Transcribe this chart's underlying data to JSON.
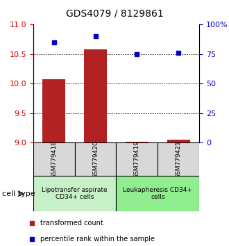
{
  "title": "GDS4079 / 8129861",
  "samples": [
    "GSM779418",
    "GSM779420",
    "GSM779419",
    "GSM779421"
  ],
  "transformed_counts": [
    10.07,
    10.58,
    9.02,
    9.05
  ],
  "percentile_ranks": [
    85,
    90,
    75,
    76
  ],
  "ylim_left": [
    9,
    11
  ],
  "ylim_right": [
    0,
    100
  ],
  "yticks_left": [
    9,
    9.5,
    10,
    10.5,
    11
  ],
  "yticks_right": [
    0,
    25,
    50,
    75,
    100
  ],
  "ytick_labels_right": [
    "0",
    "25",
    "50",
    "75",
    "100%"
  ],
  "bar_color": "#b22222",
  "dot_color": "#0000cc",
  "bar_bottom": 9.0,
  "groups": [
    {
      "label": "Lipotransfer aspirate\nCD34+ cells",
      "indices": [
        0,
        1
      ],
      "color": "#c8f0c8"
    },
    {
      "label": "Leukapheresis CD34+\ncells",
      "indices": [
        2,
        3
      ],
      "color": "#90ee90"
    }
  ],
  "cell_type_label": "cell type",
  "legend_items": [
    {
      "color": "#b22222",
      "label": "transformed count"
    },
    {
      "color": "#0000cc",
      "label": "percentile rank within the sample"
    }
  ],
  "grid_yticks": [
    9.5,
    10.0,
    10.5
  ]
}
